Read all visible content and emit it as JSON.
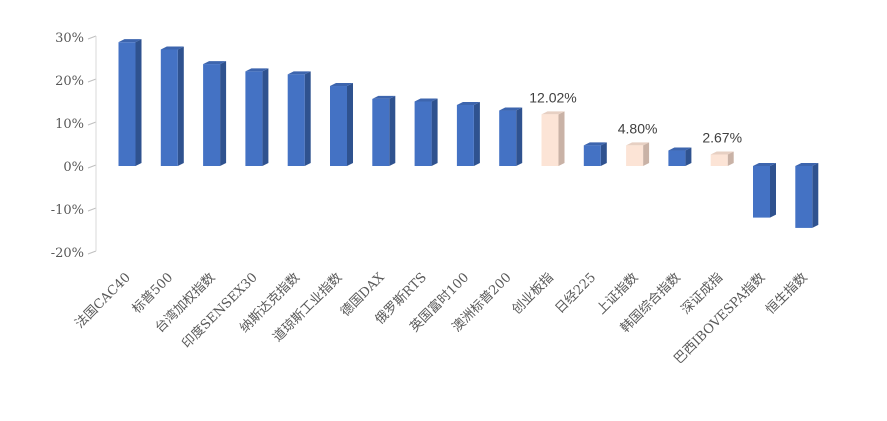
{
  "chart_data": {
    "type": "bar",
    "categories": [
      "法国CAC40",
      "标普500",
      "台湾加权指数",
      "印度SENSEX30",
      "纳斯达克指数",
      "道琼斯工业指数",
      "德国DAX",
      "俄罗斯RTS",
      "英国富时100",
      "澳洲标普200",
      "创业板指",
      "日经225",
      "上证指数",
      "韩国综合指数",
      "深证成指",
      "巴西IBOVESPA指数",
      "恒生指数"
    ],
    "values": [
      28.8,
      27.1,
      23.7,
      22.0,
      21.3,
      18.6,
      15.6,
      15.0,
      14.2,
      12.9,
      12.02,
      4.8,
      4.8,
      3.6,
      2.67,
      -12.0,
      -14.4
    ],
    "highlighted": [
      "创业板指",
      "上证指数",
      "深证成指"
    ],
    "data_labels": [
      {
        "category": "创业板指",
        "text": "12.02%"
      },
      {
        "category": "上证指数",
        "text": "4.80%"
      },
      {
        "category": "深证成指",
        "text": "2.67%"
      }
    ],
    "y_ticks": [
      "30%",
      "20%",
      "10%",
      "0%",
      "-10%",
      "-20%"
    ],
    "ylim": [
      -20,
      30
    ],
    "grid": false,
    "colors": {
      "bar_front": "#4472C4",
      "bar_side": "#2F528F",
      "bar_top": "#3D65AE",
      "hl_front": "#FCE4D6",
      "hl_side": "#C9B2A6",
      "hl_top": "#E7D0C3"
    }
  }
}
